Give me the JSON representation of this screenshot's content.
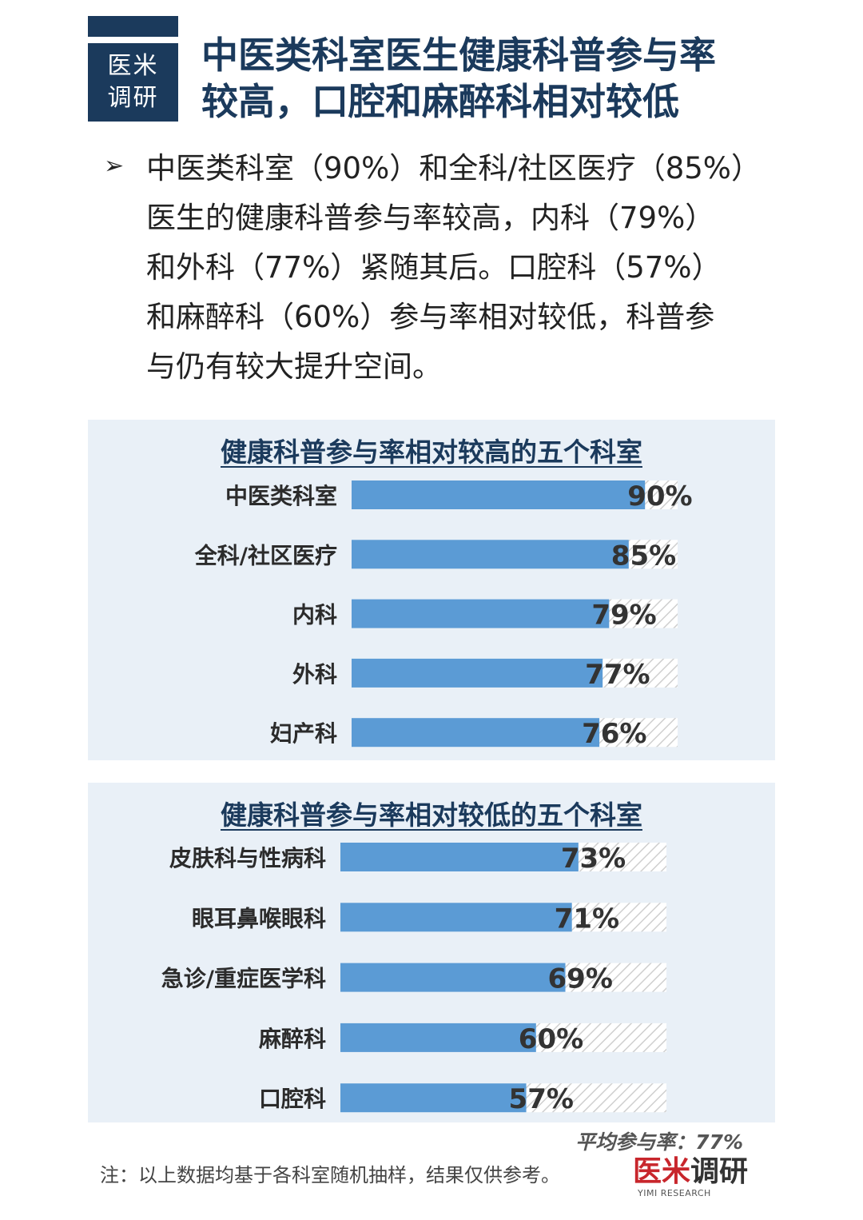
{
  "badge": {
    "line1": "医米",
    "line2": "调研"
  },
  "title": {
    "line1": "中医类科室医生健康科普参与率",
    "line2": "较高，口腔和麻醉科相对较低"
  },
  "intro": {
    "bullet": "➢",
    "lines": [
      "中医类科室（90%）和全科/社区医疗（85%）",
      "医生的健康科普参与率较高，内科（79%）",
      "和外科（77%）紧随其后。口腔科（57%）",
      "和麻醉科（60%）参与率相对较低，科普参",
      "与仍有较大提升空间。"
    ]
  },
  "chart_data": [
    {
      "type": "bar",
      "orientation": "horizontal",
      "title": "健康科普参与率相对较高的五个科室",
      "categories": [
        "中医类科室",
        "全科/社区医疗",
        "内科",
        "外科",
        "妇产科"
      ],
      "values": [
        90,
        85,
        79,
        77,
        76
      ],
      "value_labels": [
        "90%",
        "85%",
        "79%",
        "77%",
        "76%"
      ],
      "xlim": [
        0,
        100
      ],
      "bar_color": "#5b9bd5"
    },
    {
      "type": "bar",
      "orientation": "horizontal",
      "title": "健康科普参与率相对较低的五个科室",
      "categories": [
        "皮肤科与性病科",
        "眼耳鼻喉眼科",
        "急诊/重症医学科",
        "麻醉科",
        "口腔科"
      ],
      "values": [
        73,
        71,
        69,
        60,
        57
      ],
      "value_labels": [
        "73%",
        "71%",
        "69%",
        "60%",
        "57%"
      ],
      "xlim": [
        0,
        100
      ],
      "bar_color": "#5b9bd5"
    }
  ],
  "average": "平均参与率：77%",
  "footnote": "注：以上数据均基于各科室随机抽样，结果仅供参考。",
  "logo": {
    "red": "医米",
    "dark": "调研",
    "sub": "YIMI RESEARCH"
  }
}
